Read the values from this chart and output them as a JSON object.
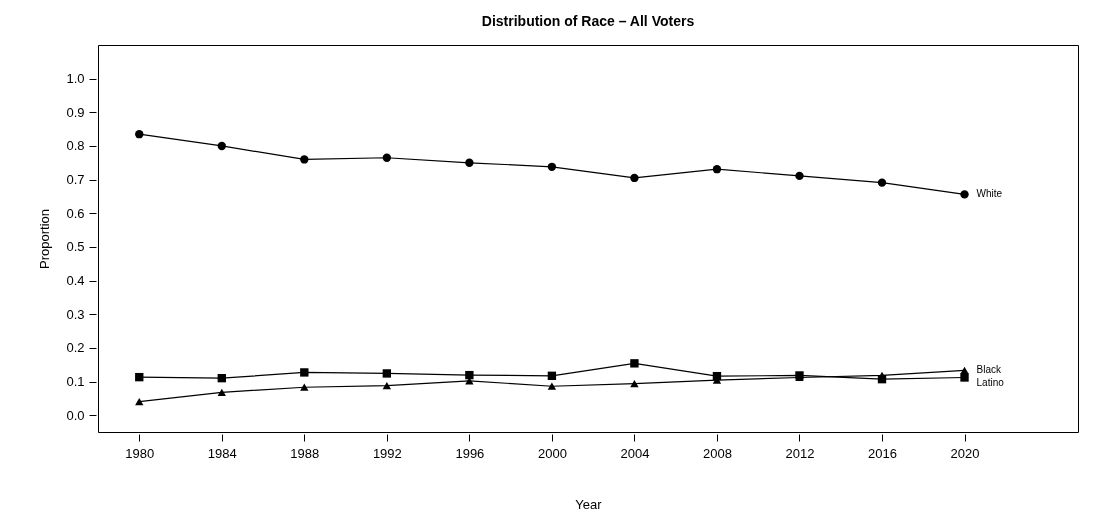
{
  "chart_data": {
    "type": "line",
    "title": "Distribution of Race – All Voters",
    "xlabel": "Year",
    "ylabel": "Proportion",
    "x": [
      1980,
      1984,
      1988,
      1992,
      1996,
      2000,
      2004,
      2008,
      2012,
      2016,
      2020
    ],
    "series": [
      {
        "name": "White",
        "color": "#000000",
        "marker": "circle",
        "values": [
          0.835,
          0.8,
          0.76,
          0.765,
          0.75,
          0.738,
          0.705,
          0.731,
          0.711,
          0.691,
          0.656
        ]
      },
      {
        "name": "Latino",
        "color": "#000000",
        "marker": "square",
        "values": [
          0.113,
          0.11,
          0.127,
          0.124,
          0.119,
          0.117,
          0.154,
          0.116,
          0.118,
          0.107,
          0.112
        ]
      },
      {
        "name": "Black",
        "color": "#000000",
        "marker": "triangle",
        "values": [
          0.04,
          0.068,
          0.083,
          0.088,
          0.102,
          0.086,
          0.094,
          0.104,
          0.112,
          0.118,
          0.133
        ]
      }
    ],
    "xlim": [
      1978,
      2025.5
    ],
    "ylim": [
      -0.05,
      1.1
    ],
    "xticks": [
      1980,
      1984,
      1988,
      1992,
      1996,
      2000,
      2004,
      2008,
      2012,
      2016,
      2020
    ],
    "yticks": [
      {
        "value": 0,
        "label": "0.0"
      },
      0.1,
      0.2,
      0.3,
      0.4,
      0.5,
      0.6,
      0.7,
      0.8,
      0.9,
      {
        "value": 1,
        "label": "1.0"
      }
    ],
    "grid": false,
    "legend": false,
    "line_style": "solid"
  }
}
